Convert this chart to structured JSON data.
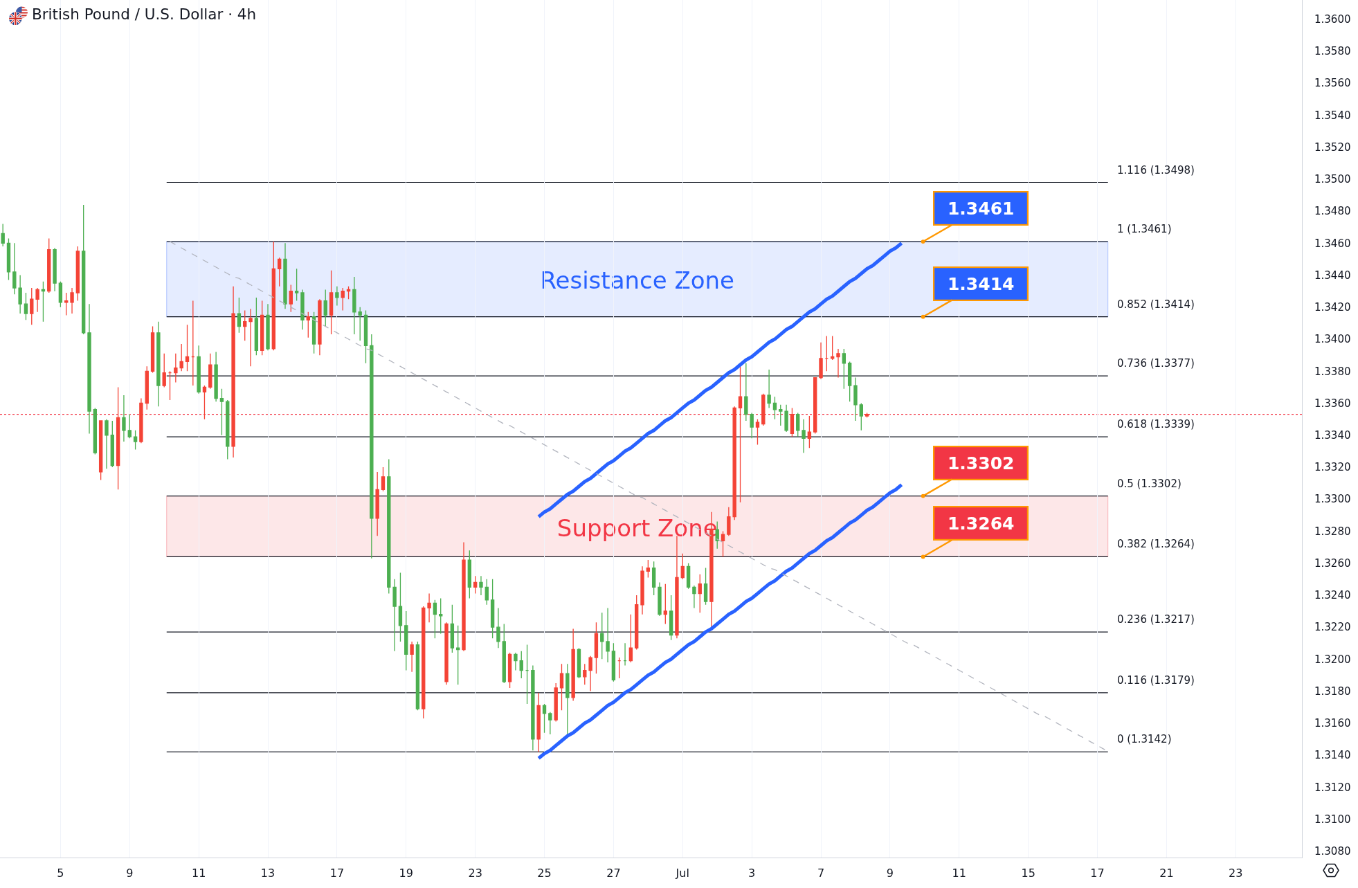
{
  "chart_data": {
    "type": "candlestick",
    "title": "British Pound / U.S. Dollar · 4h",
    "categories": [
      null,
      null,
      null,
      null,
      null,
      null,
      null,
      null,
      null,
      null,
      "5",
      null,
      null,
      null,
      null,
      null,
      null,
      null,
      null,
      null,
      null,
      null,
      "9",
      null,
      null,
      null,
      null,
      null,
      null,
      null,
      null,
      null,
      null,
      null,
      "11",
      null,
      null,
      null,
      null,
      null,
      null,
      null,
      null,
      null,
      null,
      null,
      "13",
      null,
      null,
      null,
      null,
      null,
      null,
      null,
      null,
      null,
      null,
      null,
      "17",
      null,
      null,
      null,
      null,
      null,
      null,
      null,
      null,
      null,
      null,
      null,
      "19",
      null,
      null,
      null,
      null,
      null,
      null,
      null,
      null,
      null,
      null,
      null,
      "23",
      null,
      null,
      null,
      null,
      null,
      null,
      null,
      null,
      null,
      null,
      null,
      "25",
      null,
      null,
      null,
      null,
      null,
      null,
      null,
      null,
      null,
      null,
      null,
      "27",
      null,
      null,
      null,
      null,
      null,
      null,
      null,
      null,
      null,
      null,
      null,
      "Jul",
      null,
      null,
      null,
      null,
      null,
      null,
      null,
      null,
      null,
      null,
      null,
      "3",
      null,
      null,
      null,
      null,
      null,
      null,
      null,
      null,
      null,
      null,
      null,
      "7",
      null,
      null,
      null,
      null,
      null,
      null,
      null,
      null,
      null,
      null,
      null,
      "9",
      null,
      null,
      null,
      null,
      null,
      null,
      null,
      null,
      null,
      null,
      null,
      "11",
      null,
      null,
      null,
      null,
      null,
      null,
      null,
      null,
      null,
      null,
      null,
      "15",
      null,
      null,
      null,
      null,
      null,
      null,
      null,
      null,
      null,
      null,
      null,
      "17",
      null,
      null,
      null,
      null,
      null,
      null,
      null,
      null,
      null,
      null,
      null,
      "21",
      null,
      null,
      null,
      null,
      null,
      null,
      null,
      null,
      null,
      null,
      null,
      "23",
      null,
      null,
      null,
      null,
      null,
      null,
      null,
      null,
      null,
      null,
      null
    ],
    "ohlc": [
      [
        1.3466,
        1.3472,
        1.3458,
        1.346
      ],
      [
        1.346,
        1.3463,
        1.3437,
        1.3442
      ],
      [
        1.3442,
        1.346,
        1.3428,
        1.3432
      ],
      [
        1.3432,
        1.344,
        1.3416,
        1.3422
      ],
      [
        1.3422,
        1.3429,
        1.3412,
        1.3416
      ],
      [
        1.3416,
        1.3432,
        1.3409,
        1.3425
      ],
      [
        1.3425,
        1.3432,
        1.3417,
        1.3431
      ],
      [
        1.3431,
        1.3436,
        1.3411,
        1.343
      ],
      [
        1.343,
        1.3463,
        1.3429,
        1.3456
      ],
      [
        1.3456,
        1.3457,
        1.343,
        1.3435
      ],
      [
        1.3435,
        1.3436,
        1.342,
        1.3423
      ],
      [
        1.3423,
        1.3429,
        1.3415,
        1.3424
      ],
      [
        1.3423,
        1.3432,
        1.3416,
        1.3429
      ],
      [
        1.3429,
        1.3458,
        1.3424,
        1.3455
      ],
      [
        1.3455,
        1.3484,
        1.3403,
        1.3404
      ],
      [
        1.3404,
        1.3422,
        1.3341,
        1.3355
      ],
      [
        1.3356,
        1.3357,
        1.3328,
        1.3329
      ],
      [
        1.3317,
        1.3349,
        1.3312,
        1.3349
      ],
      [
        1.3349,
        1.335,
        1.3319,
        1.334
      ],
      [
        1.334,
        1.3349,
        1.332,
        1.3321
      ],
      [
        1.3321,
        1.337,
        1.3306,
        1.3351
      ],
      [
        1.3351,
        1.3365,
        1.3336,
        1.3343
      ],
      [
        1.3343,
        1.3353,
        1.3338,
        1.3339
      ],
      [
        1.3339,
        1.3343,
        1.3331,
        1.3336
      ],
      [
        1.3336,
        1.3363,
        1.3335,
        1.336
      ],
      [
        1.336,
        1.3383,
        1.3356,
        1.338
      ],
      [
        1.338,
        1.3408,
        1.3379,
        1.3404
      ],
      [
        1.3404,
        1.3411,
        1.3358,
        1.3371
      ],
      [
        1.3371,
        1.3391,
        1.337,
        1.3379
      ],
      [
        1.3379,
        1.338,
        1.3362,
        1.3379
      ],
      [
        1.3379,
        1.3391,
        1.3373,
        1.3382
      ],
      [
        1.3382,
        1.3397,
        1.338,
        1.3386
      ],
      [
        1.3386,
        1.3409,
        1.338,
        1.3389
      ],
      [
        1.3389,
        1.3424,
        1.3371,
        1.3389
      ],
      [
        1.3389,
        1.3396,
        1.3366,
        1.3367
      ],
      [
        1.3367,
        1.3371,
        1.335,
        1.337
      ],
      [
        1.337,
        1.3391,
        1.3369,
        1.3384
      ],
      [
        1.3384,
        1.3392,
        1.3361,
        1.3363
      ],
      [
        1.3363,
        1.3369,
        1.334,
        1.3361
      ],
      [
        1.3361,
        1.3362,
        1.3325,
        1.3333
      ],
      [
        1.3333,
        1.3433,
        1.3326,
        1.3416
      ],
      [
        1.3416,
        1.3426,
        1.3404,
        1.3408
      ],
      [
        1.3408,
        1.3418,
        1.3399,
        1.3411
      ],
      [
        1.3411,
        1.3419,
        1.3383,
        1.3413
      ],
      [
        1.3413,
        1.3426,
        1.339,
        1.3393
      ],
      [
        1.3393,
        1.3424,
        1.339,
        1.3415
      ],
      [
        1.3415,
        1.3422,
        1.3393,
        1.3394
      ],
      [
        1.3394,
        1.3461,
        1.3393,
        1.3444
      ],
      [
        1.3444,
        1.3451,
        1.3433,
        1.345
      ],
      [
        1.345,
        1.346,
        1.3419,
        1.3422
      ],
      [
        1.3422,
        1.3434,
        1.3417,
        1.343
      ],
      [
        1.343,
        1.3444,
        1.3424,
        1.3429
      ],
      [
        1.3429,
        1.3431,
        1.3406,
        1.3412
      ],
      [
        1.3412,
        1.3417,
        1.3401,
        1.3414
      ],
      [
        1.3414,
        1.3417,
        1.3391,
        1.3397
      ],
      [
        1.3397,
        1.3425,
        1.339,
        1.3424
      ],
      [
        1.3424,
        1.3431,
        1.3408,
        1.3415
      ],
      [
        1.3415,
        1.3443,
        1.3403,
        1.3429
      ],
      [
        1.3429,
        1.3433,
        1.3421,
        1.3426
      ],
      [
        1.3426,
        1.3432,
        1.3418,
        1.343
      ],
      [
        1.343,
        1.3433,
        1.3425,
        1.3431
      ],
      [
        1.3431,
        1.3439,
        1.3403,
        1.3417
      ],
      [
        1.3417,
        1.342,
        1.3399,
        1.3415
      ],
      [
        1.3415,
        1.3418,
        1.3385,
        1.3396
      ],
      [
        1.3396,
        1.3403,
        1.3263,
        1.3288
      ],
      [
        1.3288,
        1.3317,
        1.3277,
        1.3306
      ],
      [
        1.3306,
        1.332,
        1.3305,
        1.3314
      ],
      [
        1.3314,
        1.3325,
        1.3241,
        1.3245
      ],
      [
        1.3245,
        1.325,
        1.3205,
        1.3233
      ],
      [
        1.3233,
        1.3254,
        1.3211,
        1.3221
      ],
      [
        1.3221,
        1.323,
        1.3193,
        1.3203
      ],
      [
        1.3203,
        1.3211,
        1.3192,
        1.3209
      ],
      [
        1.3209,
        1.3211,
        1.3168,
        1.3169
      ],
      [
        1.3169,
        1.3233,
        1.3163,
        1.3232
      ],
      [
        1.3232,
        1.3241,
        1.3223,
        1.3235
      ],
      [
        1.3235,
        1.3237,
        1.3213,
        1.3228
      ],
      [
        1.3228,
        1.3238,
        1.3216,
        1.3227
      ],
      [
        1.3186,
        1.3223,
        1.3184,
        1.3222
      ],
      [
        1.3222,
        1.3234,
        1.3204,
        1.3207
      ],
      [
        1.3207,
        1.3221,
        1.3184,
        1.3206
      ],
      [
        1.3206,
        1.3273,
        1.3205,
        1.3262
      ],
      [
        1.3262,
        1.3268,
        1.3238,
        1.3245
      ],
      [
        1.3245,
        1.3252,
        1.3241,
        1.3248
      ],
      [
        1.3248,
        1.3252,
        1.324,
        1.3245
      ],
      [
        1.3245,
        1.325,
        1.3234,
        1.3237
      ],
      [
        1.3237,
        1.325,
        1.3213,
        1.322
      ],
      [
        1.322,
        1.3232,
        1.3207,
        1.3211
      ],
      [
        1.3211,
        1.3222,
        1.3185,
        1.3186
      ],
      [
        1.3186,
        1.3204,
        1.3182,
        1.3203
      ],
      [
        1.3203,
        1.3204,
        1.3193,
        1.3199
      ],
      [
        1.3199,
        1.3205,
        1.3188,
        1.3193
      ],
      [
        1.3193,
        1.3209,
        1.3172,
        1.3193
      ],
      [
        1.3193,
        1.3196,
        1.3143,
        1.315
      ],
      [
        1.315,
        1.3179,
        1.3142,
        1.3171
      ],
      [
        1.3171,
        1.3172,
        1.3154,
        1.3166
      ],
      [
        1.3166,
        1.3167,
        1.3153,
        1.3162
      ],
      [
        1.3162,
        1.3185,
        1.3161,
        1.3182
      ],
      [
        1.3182,
        1.3197,
        1.3168,
        1.3191
      ],
      [
        1.3191,
        1.3197,
        1.3152,
        1.3176
      ],
      [
        1.3176,
        1.3219,
        1.3174,
        1.3206
      ],
      [
        1.3206,
        1.3207,
        1.3188,
        1.3189
      ],
      [
        1.3189,
        1.3197,
        1.3184,
        1.3193
      ],
      [
        1.3193,
        1.3202,
        1.318,
        1.3201
      ],
      [
        1.3201,
        1.3223,
        1.3191,
        1.3216
      ],
      [
        1.3216,
        1.3229,
        1.32,
        1.3211
      ],
      [
        1.3211,
        1.3232,
        1.3198,
        1.3205
      ],
      [
        1.3205,
        1.321,
        1.3186,
        1.3187
      ],
      [
        1.3199,
        1.3201,
        1.3188,
        1.3199
      ],
      [
        1.3199,
        1.321,
        1.3196,
        1.3199
      ],
      [
        1.3199,
        1.3228,
        1.3198,
        1.3207
      ],
      [
        1.3207,
        1.324,
        1.3206,
        1.3234
      ],
      [
        1.3234,
        1.3258,
        1.3228,
        1.3255
      ],
      [
        1.3255,
        1.3262,
        1.3251,
        1.3257
      ],
      [
        1.3257,
        1.3261,
        1.324,
        1.3245
      ],
      [
        1.3245,
        1.3248,
        1.3227,
        1.3228
      ],
      [
        1.3228,
        1.3247,
        1.3222,
        1.323
      ],
      [
        1.323,
        1.324,
        1.3212,
        1.3215
      ],
      [
        1.3215,
        1.3277,
        1.3213,
        1.3251
      ],
      [
        1.3251,
        1.3266,
        1.325,
        1.3258
      ],
      [
        1.3258,
        1.326,
        1.3244,
        1.3245
      ],
      [
        1.3245,
        1.3246,
        1.3232,
        1.3241
      ],
      [
        1.3241,
        1.3253,
        1.3229,
        1.3247
      ],
      [
        1.3247,
        1.3257,
        1.3234,
        1.3236
      ],
      [
        1.3236,
        1.3292,
        1.3219,
        1.3281
      ],
      [
        1.3281,
        1.3286,
        1.3269,
        1.3274
      ],
      [
        1.3274,
        1.328,
        1.3264,
        1.3278
      ],
      [
        1.3278,
        1.3295,
        1.3277,
        1.3289
      ],
      [
        1.3289,
        1.3358,
        1.3287,
        1.3357
      ],
      [
        1.3357,
        1.3383,
        1.3298,
        1.3364
      ],
      [
        1.3364,
        1.3385,
        1.3349,
        1.3353
      ],
      [
        1.3353,
        1.3354,
        1.3338,
        1.3345
      ],
      [
        1.3345,
        1.335,
        1.3334,
        1.3348
      ],
      [
        1.3347,
        1.3366,
        1.3346,
        1.3365
      ],
      [
        1.3365,
        1.3381,
        1.3357,
        1.336
      ],
      [
        1.336,
        1.3364,
        1.335,
        1.3356
      ],
      [
        1.3356,
        1.3359,
        1.3346,
        1.3355
      ],
      [
        1.3355,
        1.3359,
        1.3342,
        1.3343
      ],
      [
        1.3341,
        1.3357,
        1.3339,
        1.3353
      ],
      [
        1.3353,
        1.3354,
        1.3339,
        1.3343
      ],
      [
        1.3343,
        1.335,
        1.3329,
        1.3338
      ],
      [
        1.3338,
        1.3352,
        1.3332,
        1.3342
      ],
      [
        1.3342,
        1.3376,
        1.3341,
        1.3376
      ],
      [
        1.3376,
        1.3398,
        1.3375,
        1.3388
      ],
      [
        1.3388,
        1.3402,
        1.338,
        1.3388
      ],
      [
        1.3388,
        1.3402,
        1.3387,
        1.3389
      ],
      [
        1.3389,
        1.3394,
        1.3376,
        1.3391
      ],
      [
        1.3391,
        1.3394,
        1.3369,
        1.3385
      ],
      [
        1.3385,
        1.3386,
        1.3361,
        1.3371
      ],
      [
        1.3371,
        1.3376,
        1.3349,
        1.3359
      ],
      [
        1.3359,
        1.336,
        1.3343,
        1.3352
      ],
      [
        1.3352,
        1.3354,
        1.3351,
        1.3353
      ],
      null,
      null,
      null,
      null,
      null,
      null,
      null,
      null,
      null,
      null,
      null,
      null,
      null,
      null,
      null,
      null,
      null,
      null,
      null,
      null,
      null,
      null,
      null,
      null,
      null,
      null,
      null,
      null,
      null,
      null,
      null,
      null,
      null,
      null,
      null,
      null,
      null,
      null,
      null,
      null,
      null,
      null,
      null,
      null,
      null,
      null,
      null,
      null,
      null,
      null,
      null,
      null,
      null,
      null,
      null,
      null,
      null,
      null,
      null,
      null,
      null,
      null,
      null,
      null,
      null,
      null,
      null,
      null,
      null,
      null,
      null,
      null,
      null,
      null,
      null
    ],
    "colors": [
      "#4caf50",
      "#4caf50",
      "#4caf50",
      "#4caf50",
      "#4caf50",
      "#f44336",
      "#f44336",
      "#4caf50",
      "#f44336",
      "#4caf50",
      "#4caf50",
      "#f44336",
      "#f44336",
      "#f44336",
      "#4caf50",
      "#4caf50",
      "#4caf50",
      "#f44336",
      "#4caf50",
      "#4caf50",
      "#f44336",
      "#4caf50",
      "#4caf50",
      "#4caf50",
      "#f44336",
      "#f44336",
      "#f44336",
      "#4caf50",
      "#f44336",
      "#f44336",
      "#f44336",
      "#f44336",
      "#f44336",
      "#f44336",
      "#4caf50",
      "#f44336",
      "#f44336",
      "#4caf50",
      "#4caf50",
      "#4caf50",
      "#f44336",
      "#4caf50",
      "#f44336",
      "#f44336",
      "#4caf50",
      "#f44336",
      "#4caf50",
      "#f44336",
      "#f44336",
      "#4caf50",
      "#f44336",
      "#4caf50",
      "#4caf50",
      "#f44336",
      "#4caf50",
      "#f44336",
      "#4caf50",
      "#f44336",
      "#4caf50",
      "#f44336",
      "#f44336",
      "#4caf50",
      "#4caf50",
      "#4caf50",
      "#4caf50",
      "#f44336",
      "#f44336",
      "#4caf50",
      "#4caf50",
      "#4caf50",
      "#4caf50",
      "#f44336",
      "#4caf50",
      "#f44336",
      "#f44336",
      "#4caf50",
      "#4caf50",
      "#f44336",
      "#4caf50",
      "#4caf50",
      "#f44336",
      "#4caf50",
      "#f44336",
      "#4caf50",
      "#4caf50",
      "#4caf50",
      "#4caf50",
      "#4caf50",
      "#f44336",
      "#4caf50",
      "#4caf50",
      "#4caf50",
      "#4caf50",
      "#f44336",
      "#4caf50",
      "#4caf50",
      "#f44336",
      "#f44336",
      "#4caf50",
      "#f44336",
      "#4caf50",
      "#f44336",
      "#f44336",
      "#f44336",
      "#4caf50",
      "#4caf50",
      "#4caf50",
      "#f44336",
      "#4caf50",
      "#f44336",
      "#f44336",
      "#f44336",
      "#f44336",
      "#4caf50",
      "#4caf50",
      "#f44336",
      "#4caf50",
      "#f44336",
      "#f44336",
      "#4caf50",
      "#4caf50",
      "#f44336",
      "#4caf50",
      "#f44336",
      "#4caf50",
      "#f44336",
      "#f44336",
      "#f44336",
      "#f44336",
      "#4caf50",
      "#4caf50",
      "#f44336",
      "#f44336",
      "#4caf50",
      "#4caf50",
      "#4caf50",
      "#4caf50",
      "#f44336",
      "#4caf50",
      "#4caf50",
      "#f44336",
      "#f44336",
      "#f44336",
      "#f44336",
      "#f44336",
      "#f44336",
      "#4caf50",
      "#4caf50",
      "#4caf50",
      "#4caf50",
      "#f44336",
      null,
      null,
      null,
      null,
      null,
      null,
      null,
      null,
      null,
      null,
      null,
      null,
      null,
      null,
      null,
      null,
      null,
      null,
      null,
      null,
      null,
      null,
      null,
      null,
      null,
      null,
      null,
      null,
      null,
      null,
      null,
      null,
      null,
      null,
      null,
      null,
      null,
      null,
      null,
      null,
      null,
      null,
      null,
      null,
      null,
      null,
      null,
      null,
      null,
      null,
      null,
      null,
      null,
      null,
      null,
      null,
      null,
      null,
      null,
      null,
      null,
      null,
      null,
      null,
      null,
      null,
      null,
      null,
      null,
      null,
      null,
      null,
      null,
      null,
      null
    ],
    "series": [
      {
        "type": "line",
        "color": "#2962ff",
        "values": [
          null,
          null,
          null,
          null,
          null,
          null,
          null,
          null,
          null,
          null,
          null,
          null,
          null,
          null,
          null,
          null,
          null,
          null,
          null,
          null,
          null,
          null,
          null,
          null,
          null,
          null,
          null,
          null,
          null,
          null,
          null,
          null,
          null,
          null,
          null,
          null,
          null,
          null,
          null,
          null,
          null,
          null,
          null,
          null,
          null,
          null,
          null,
          null,
          null,
          null,
          null,
          null,
          null,
          null,
          null,
          null,
          null,
          null,
          null,
          null,
          null,
          null,
          null,
          null,
          null,
          null,
          null,
          null,
          null,
          null,
          null,
          null,
          null,
          null,
          null,
          null,
          null,
          null,
          null,
          null,
          null,
          null,
          null,
          null,
          null,
          null,
          null,
          null,
          null,
          null,
          null,
          null,
          null,
          1.3289,
          1.3292,
          1.3294,
          1.3297,
          1.33,
          1.3303,
          1.3305,
          1.3308,
          1.3311,
          1.3313,
          1.3316,
          1.3319,
          1.3322,
          1.3324,
          1.3327,
          1.333,
          1.3332,
          1.3335,
          1.3338,
          1.3341,
          1.3343,
          1.3346,
          1.3349,
          1.3351,
          1.3354,
          1.3357,
          1.336,
          1.3362,
          1.3365,
          1.3368,
          1.337,
          1.3373,
          1.3376,
          1.3379,
          1.3381,
          1.3384,
          1.3387,
          1.3389,
          1.3392,
          1.3395,
          1.3398,
          1.34,
          1.3403,
          1.3406,
          1.3408,
          1.3411,
          1.3414,
          1.3417,
          1.3419,
          1.3422,
          1.3425,
          1.3427,
          1.343,
          1.3433,
          1.3436,
          1.3438,
          1.3441,
          1.3444,
          1.3446,
          1.3449,
          1.3452,
          1.3455,
          1.3457,
          1.346,
          null,
          null,
          null,
          null,
          null,
          null,
          null,
          null,
          null,
          null,
          null,
          null,
          null,
          null,
          null,
          null,
          null,
          null,
          null,
          null,
          null,
          null,
          null,
          null,
          null,
          null,
          null,
          null,
          null,
          null,
          null,
          null,
          null,
          null,
          null,
          null,
          null,
          null,
          null,
          null,
          null,
          null,
          null,
          null,
          null,
          null,
          null,
          null,
          null,
          null,
          null,
          null,
          null,
          null,
          null,
          null,
          null,
          null,
          null,
          null,
          null,
          null,
          null,
          null,
          null,
          null,
          null,
          null,
          null
        ]
      },
      {
        "type": "line",
        "color": "#2962ff",
        "values": [
          null,
          null,
          null,
          null,
          null,
          null,
          null,
          null,
          null,
          null,
          null,
          null,
          null,
          null,
          null,
          null,
          null,
          null,
          null,
          null,
          null,
          null,
          null,
          null,
          null,
          null,
          null,
          null,
          null,
          null,
          null,
          null,
          null,
          null,
          null,
          null,
          null,
          null,
          null,
          null,
          null,
          null,
          null,
          null,
          null,
          null,
          null,
          null,
          null,
          null,
          null,
          null,
          null,
          null,
          null,
          null,
          null,
          null,
          null,
          null,
          null,
          null,
          null,
          null,
          null,
          null,
          null,
          null,
          null,
          null,
          null,
          null,
          null,
          null,
          null,
          null,
          null,
          null,
          null,
          null,
          null,
          null,
          null,
          null,
          null,
          null,
          null,
          null,
          null,
          null,
          null,
          null,
          null,
          1.3138,
          1.3141,
          1.3143,
          1.3146,
          1.3149,
          1.3152,
          1.3154,
          1.3157,
          1.316,
          1.3162,
          1.3165,
          1.3168,
          1.3171,
          1.3173,
          1.3176,
          1.3179,
          1.3181,
          1.3184,
          1.3187,
          1.319,
          1.3192,
          1.3195,
          1.3198,
          1.32,
          1.3203,
          1.3206,
          1.3209,
          1.3211,
          1.3214,
          1.3217,
          1.3219,
          1.3222,
          1.3225,
          1.3228,
          1.323,
          1.3233,
          1.3236,
          1.3238,
          1.3241,
          1.3244,
          1.3247,
          1.3249,
          1.3252,
          1.3255,
          1.3257,
          1.326,
          1.3263,
          1.3266,
          1.3268,
          1.3271,
          1.3274,
          1.3276,
          1.3279,
          1.3282,
          1.3285,
          1.3287,
          1.329,
          1.3293,
          1.3295,
          1.3298,
          1.3301,
          1.3304,
          1.3306,
          1.3309,
          null,
          null,
          null,
          null,
          null,
          null,
          null,
          null,
          null,
          null,
          null,
          null,
          null,
          null,
          null,
          null,
          null,
          null,
          null,
          null,
          null,
          null,
          null,
          null,
          null,
          null,
          null,
          null,
          null,
          null,
          null,
          null,
          null,
          null,
          null,
          null,
          null,
          null,
          null,
          null,
          null,
          null,
          null,
          null,
          null,
          null,
          null,
          null,
          null,
          null,
          null,
          null,
          null,
          null,
          null,
          null,
          null,
          null,
          null,
          null,
          null,
          null,
          null,
          null,
          null,
          null,
          null,
          null,
          null
        ]
      },
      {
        "type": "line",
        "color": "#b2b5be",
        "line_style": "dashed",
        "values": [
          null,
          null,
          null,
          null,
          null,
          null,
          null,
          null,
          null,
          null,
          null,
          null,
          null,
          null,
          null,
          null,
          null,
          null,
          null,
          null,
          null,
          null,
          null,
          null,
          null,
          null,
          null,
          null,
          null,
          1.3461,
          1.3459,
          1.3457,
          1.3455,
          1.3453,
          1.3451,
          1.3449,
          1.3447,
          1.3445,
          1.3443,
          1.3441,
          1.3439,
          1.3438,
          1.3436,
          1.3434,
          1.3432,
          1.343,
          1.3428,
          1.3426,
          1.3424,
          1.3422,
          1.342,
          1.3418,
          1.3416,
          1.3414,
          1.3412,
          1.341,
          1.3408,
          1.3406,
          1.3404,
          1.3402,
          1.34,
          1.3398,
          1.3396,
          1.3394,
          1.3393,
          1.3391,
          1.3389,
          1.3387,
          1.3385,
          1.3383,
          1.3381,
          1.3379,
          1.3377,
          1.3375,
          1.3373,
          1.3371,
          1.3369,
          1.3367,
          1.3365,
          1.3363,
          1.3361,
          1.3359,
          1.3357,
          1.3355,
          1.3353,
          1.3351,
          1.3349,
          1.3347,
          1.3346,
          1.3344,
          1.3342,
          1.334,
          1.3338,
          1.3336,
          1.3334,
          1.3332,
          1.333,
          1.3328,
          1.3326,
          1.3324,
          1.3322,
          1.332,
          1.3318,
          1.3316,
          1.3314,
          1.3312,
          1.331,
          1.3308,
          1.3306,
          1.3304,
          1.3302,
          1.3301,
          1.3299,
          1.3297,
          1.3295,
          1.3293,
          1.3291,
          1.3289,
          1.3287,
          1.3285,
          1.3283,
          1.3281,
          1.3279,
          1.3277,
          1.3275,
          1.3273,
          1.3271,
          1.3269,
          1.3267,
          1.3265,
          1.3263,
          1.3261,
          1.3259,
          1.3257,
          1.3256,
          1.3254,
          1.3252,
          1.325,
          1.3248,
          1.3246,
          1.3244,
          1.3242,
          1.324,
          1.3238,
          1.3236,
          1.3234,
          1.3232,
          1.323,
          1.3228,
          1.3226,
          1.3224,
          1.3222,
          1.322,
          1.3218,
          1.3216,
          1.3214,
          1.3212,
          1.321,
          1.3209,
          1.3207,
          1.3205,
          1.3203,
          1.3201,
          1.3199,
          1.3197,
          1.3195,
          1.3193,
          1.3191,
          1.3189,
          1.3187,
          1.3185,
          1.3183,
          1.3181,
          1.3179,
          1.3177,
          1.3175,
          1.3173,
          1.3171,
          1.3169,
          1.3167,
          1.3165,
          1.3164,
          1.3162,
          1.316,
          1.3158,
          1.3156,
          1.3154,
          1.3152,
          1.315,
          1.3148,
          1.3146,
          1.3144,
          1.3142,
          null,
          null,
          null,
          null,
          null,
          null,
          null,
          null,
          null,
          null,
          null,
          null,
          null,
          null,
          null,
          null,
          null,
          null,
          null,
          null,
          null,
          null,
          null,
          null,
          null,
          null,
          null,
          null,
          null,
          null,
          null,
          null,
          null
        ]
      }
    ],
    "ylim": [
      1.3076,
      1.3612
    ],
    "yticks": [
      {
        "value": 1.308,
        "label": "1.3080"
      },
      {
        "value": 1.31,
        "label": "1.3100"
      },
      {
        "value": 1.312,
        "label": "1.3120"
      },
      {
        "value": 1.314,
        "label": "1.3140"
      },
      {
        "value": 1.316,
        "label": "1.3160"
      },
      {
        "value": 1.318,
        "label": "1.3180"
      },
      {
        "value": 1.32,
        "label": "1.3200"
      },
      {
        "value": 1.322,
        "label": "1.3220"
      },
      {
        "value": 1.324,
        "label": "1.3240"
      },
      {
        "value": 1.326,
        "label": "1.3260"
      },
      {
        "value": 1.328,
        "label": "1.3280"
      },
      {
        "value": 1.33,
        "label": "1.3300"
      },
      {
        "value": 1.332,
        "label": "1.3320"
      },
      {
        "value": 1.334,
        "label": "1.3340"
      },
      {
        "value": 1.336,
        "label": "1.3360"
      },
      {
        "value": 1.338,
        "label": "1.3380"
      },
      {
        "value": 1.34,
        "label": "1.3400"
      },
      {
        "value": 1.342,
        "label": "1.3420"
      },
      {
        "value": 1.344,
        "label": "1.3440"
      },
      {
        "value": 1.346,
        "label": "1.3460"
      },
      {
        "value": 1.348,
        "label": "1.3480"
      },
      {
        "value": 1.35,
        "label": "1.3500"
      },
      {
        "value": 1.352,
        "label": "1.3520"
      },
      {
        "value": 1.354,
        "label": "1.3540"
      },
      {
        "value": 1.356,
        "label": "1.3560"
      },
      {
        "value": 1.358,
        "label": "1.3580"
      },
      {
        "value": 1.36,
        "label": "1.3600"
      }
    ],
    "grid": "x",
    "ref_lines": [
      {
        "axis": "y",
        "value": 1.3498,
        "label": "1.116 (1.3498)",
        "color": "#131722"
      },
      {
        "axis": "y",
        "value": 1.3461,
        "label": "1 (1.3461)",
        "color": "#131722"
      },
      {
        "axis": "y",
        "value": 1.3414,
        "label": "0.852 (1.3414)",
        "color": "#131722"
      },
      {
        "axis": "y",
        "value": 1.3377,
        "label": "0.736 (1.3377)",
        "color": "#131722"
      },
      {
        "axis": "y",
        "value": 1.3339,
        "label": "0.618 (1.3339)",
        "color": "#131722"
      },
      {
        "axis": "y",
        "value": 1.3302,
        "label": "0.5 (1.3302)",
        "color": "#131722"
      },
      {
        "axis": "y",
        "value": 1.3264,
        "label": "0.382 (1.3264)",
        "color": "#131722"
      },
      {
        "axis": "y",
        "value": 1.3217,
        "label": "0.236 (1.3217)",
        "color": "#131722"
      },
      {
        "axis": "y",
        "value": 1.3179,
        "label": "0.116 (1.3179)",
        "color": "#131722"
      },
      {
        "axis": "y",
        "value": 1.3142,
        "label": "0 (1.3142)",
        "color": "#131722"
      },
      {
        "axis": "y",
        "value": 1.3353,
        "color": "#f23645",
        "line_style": "dotted"
      }
    ],
    "bands": [
      {
        "axis": "y",
        "from": 1.3414,
        "to": 1.3461,
        "label": "Resistance Zone",
        "color": "#2962ff"
      },
      {
        "axis": "y",
        "from": 1.3264,
        "to": 1.3302,
        "label": "Support Zone",
        "color": "#f23645"
      }
    ],
    "annotations": [
      {
        "text": "1.3461",
        "y": 1.3461
      },
      {
        "text": "1.3414",
        "y": 1.3414
      },
      {
        "text": "1.3302",
        "y": 1.3302
      },
      {
        "text": "1.3264",
        "y": 1.3264
      }
    ]
  }
}
